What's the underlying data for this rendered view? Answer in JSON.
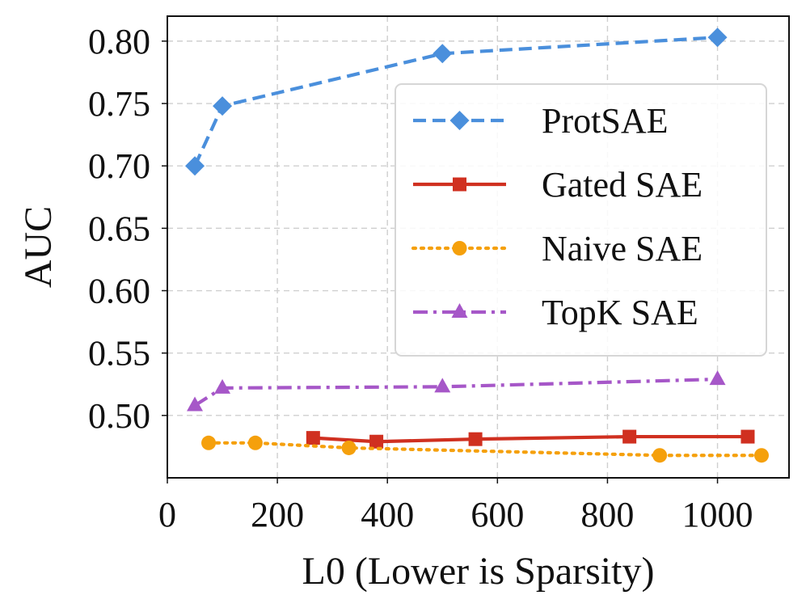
{
  "chart_data": {
    "type": "line",
    "xlabel": "L0 (Lower is Sparsity)",
    "ylabel": "AUC",
    "xlim": [
      0,
      1130
    ],
    "ylim": [
      0.45,
      0.82
    ],
    "xticks": [
      0,
      200,
      400,
      600,
      800,
      1000
    ],
    "yticks": [
      0.5,
      0.55,
      0.6,
      0.65,
      0.7,
      0.75,
      0.8
    ],
    "grid": true,
    "legend_position": "upper-right",
    "series": [
      {
        "name": "ProtSAE",
        "color": "#4a8fdc",
        "linestyle": "dashed",
        "marker": "diamond",
        "x": [
          50,
          100,
          500,
          1000
        ],
        "y": [
          0.7,
          0.748,
          0.79,
          0.803
        ]
      },
      {
        "name": "Gated SAE",
        "color": "#d03020",
        "linestyle": "solid",
        "marker": "square",
        "x": [
          265,
          380,
          560,
          840,
          1055
        ],
        "y": [
          0.482,
          0.479,
          0.481,
          0.483,
          0.483
        ]
      },
      {
        "name": "Naive SAE",
        "color": "#f5a00c",
        "linestyle": "dotted",
        "marker": "circle",
        "x": [
          75,
          160,
          330,
          895,
          1080
        ],
        "y": [
          0.478,
          0.478,
          0.474,
          0.468,
          0.468
        ]
      },
      {
        "name": "TopK SAE",
        "color": "#a657c8",
        "linestyle": "dashdot",
        "marker": "triangle",
        "x": [
          50,
          100,
          500,
          1000
        ],
        "y": [
          0.508,
          0.522,
          0.523,
          0.529
        ]
      }
    ]
  }
}
